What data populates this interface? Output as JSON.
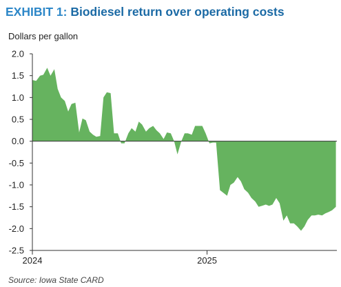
{
  "header": {
    "exhibit": "EXHIBIT 1:",
    "title": "Biodiesel return over operating costs"
  },
  "source": "Source: Iowa State CARD",
  "colors": {
    "title": "#1b6aa5",
    "exhibit": "#2d87c8",
    "area": "#66b35f"
  },
  "chart_data": {
    "type": "area",
    "title": "Biodiesel return over operating costs",
    "ylabel": "Dollars per gallon",
    "xlabel": "",
    "ylim": [
      -2.5,
      2.0
    ],
    "yticks": [
      "2.0",
      "1.5",
      "1.0",
      "0.5",
      "0.0",
      "-0.5",
      "-1.0",
      "-1.5",
      "-2.0",
      "-2.5"
    ],
    "xlim": [
      "2024-01-01",
      "2025-09-30"
    ],
    "xticks": [
      {
        "label": "2024",
        "date": "2024-01-01"
      },
      {
        "label": "2025",
        "date": "2025-01-01"
      }
    ],
    "grid": false,
    "series": [
      {
        "x": [
          "2024-01-01",
          "2024-01-09",
          "2024-01-17",
          "2024-01-24",
          "2024-02-01",
          "2024-02-08",
          "2024-02-16",
          "2024-02-23",
          "2024-03-01",
          "2024-03-09",
          "2024-03-16",
          "2024-03-23",
          "2024-03-31",
          "2024-04-08",
          "2024-04-15",
          "2024-04-22",
          "2024-04-30",
          "2024-05-07",
          "2024-05-14",
          "2024-05-22",
          "2024-05-29",
          "2024-06-05",
          "2024-06-13",
          "2024-06-20",
          "2024-06-28",
          "2024-07-05",
          "2024-07-12",
          "2024-07-20",
          "2024-07-27",
          "2024-08-04",
          "2024-08-11",
          "2024-08-18",
          "2024-08-26",
          "2024-09-02",
          "2024-09-10",
          "2024-09-17",
          "2024-09-24",
          "2024-10-02",
          "2024-10-09",
          "2024-10-17",
          "2024-10-24",
          "2024-10-31",
          "2024-11-08",
          "2024-11-15",
          "2024-11-22",
          "2024-11-30",
          "2024-12-07",
          "2024-12-14",
          "2024-12-22",
          "2024-12-29",
          "2025-01-06",
          "2025-01-13",
          "2025-01-20",
          "2025-01-28",
          "2025-02-04",
          "2025-02-12",
          "2025-02-19",
          "2025-02-26",
          "2025-03-06",
          "2025-03-13",
          "2025-03-20",
          "2025-03-28",
          "2025-04-04",
          "2025-04-12",
          "2025-04-19",
          "2025-04-26",
          "2025-05-04",
          "2025-05-11",
          "2025-05-18",
          "2025-05-26",
          "2025-06-02",
          "2025-06-10",
          "2025-06-17",
          "2025-06-24",
          "2025-07-02",
          "2025-07-09",
          "2025-07-17",
          "2025-07-24",
          "2025-07-31",
          "2025-08-08",
          "2025-08-15",
          "2025-08-22",
          "2025-08-30",
          "2025-09-06",
          "2025-09-13",
          "2025-09-20",
          "2025-09-28"
        ],
        "values": [
          1.4,
          1.38,
          1.5,
          1.52,
          1.68,
          1.5,
          1.65,
          1.2,
          1.0,
          0.92,
          0.68,
          0.85,
          0.88,
          0.2,
          0.52,
          0.48,
          0.22,
          0.15,
          0.1,
          0.12,
          1.0,
          1.12,
          1.1,
          0.18,
          0.18,
          -0.05,
          -0.05,
          0.18,
          0.3,
          0.22,
          0.45,
          0.38,
          0.22,
          0.3,
          0.35,
          0.25,
          0.18,
          0.05,
          0.2,
          0.18,
          0.0,
          -0.3,
          0.0,
          0.18,
          0.18,
          0.15,
          0.35,
          0.35,
          0.35,
          0.18,
          -0.05,
          -0.03,
          -0.03,
          -1.12,
          -1.18,
          -1.25,
          -1.0,
          -0.95,
          -0.82,
          -0.92,
          -1.1,
          -1.18,
          -1.3,
          -1.38,
          -1.5,
          -1.48,
          -1.45,
          -1.48,
          -1.45,
          -1.3,
          -1.42,
          -1.82,
          -1.7,
          -1.88,
          -1.88,
          -1.95,
          -2.05,
          -1.95,
          -1.8,
          -1.7,
          -1.7,
          -1.68,
          -1.7,
          -1.65,
          -1.62,
          -1.58,
          -1.5
        ]
      }
    ]
  }
}
